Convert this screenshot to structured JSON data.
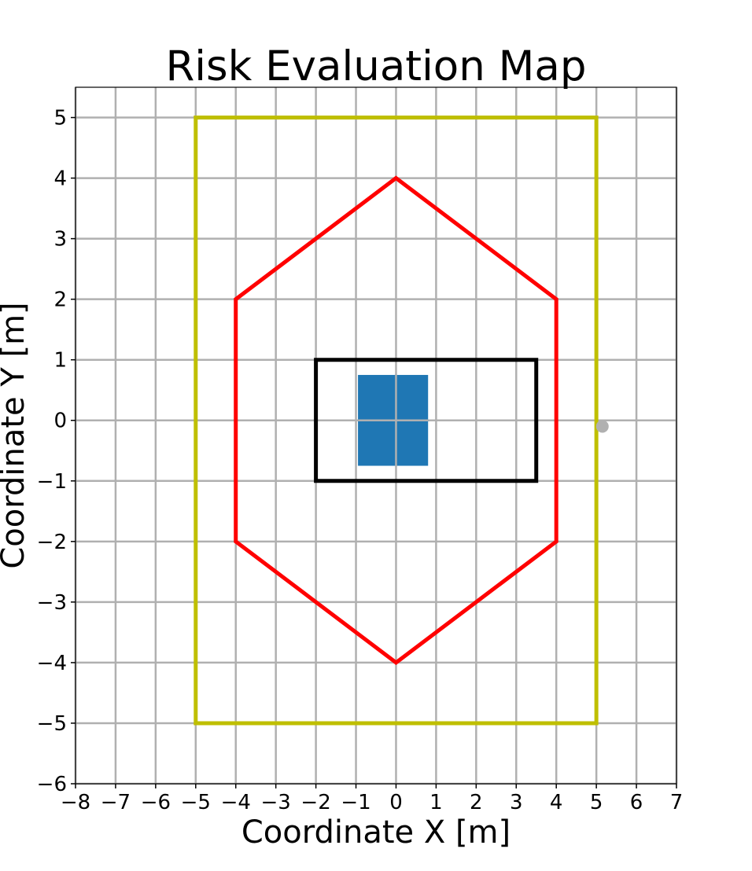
{
  "chart_data": {
    "type": "scatter",
    "title": "Risk Evaluation Map",
    "xlabel": "Coordinate X [m]",
    "ylabel": "Coordinate Y [m]",
    "xlim": [
      -8,
      7
    ],
    "ylim": [
      -6,
      5.5
    ],
    "xticks": [
      -8,
      -7,
      -6,
      -5,
      -4,
      -3,
      -2,
      -1,
      0,
      1,
      2,
      3,
      4,
      5,
      6,
      7
    ],
    "yticks": [
      -6,
      -5,
      -4,
      -3,
      -2,
      -1,
      0,
      1,
      2,
      3,
      4,
      5
    ],
    "grid": true,
    "shapes": [
      {
        "id": "outer-boundary-rectangle",
        "kind": "polygon",
        "color": "#bfbf00",
        "points": [
          [
            -5,
            -5
          ],
          [
            5,
            -5
          ],
          [
            5,
            5
          ],
          [
            -5,
            5
          ]
        ]
      },
      {
        "id": "hexagon-zone",
        "kind": "polygon",
        "color": "#ff0000",
        "points": [
          [
            0,
            4
          ],
          [
            4,
            2
          ],
          [
            4,
            -2
          ],
          [
            0,
            -4
          ],
          [
            -4,
            -2
          ],
          [
            -4,
            2
          ]
        ]
      },
      {
        "id": "inner-rectangle",
        "kind": "polygon",
        "color": "#000000",
        "points": [
          [
            -2,
            -1
          ],
          [
            3.5,
            -1
          ],
          [
            3.5,
            1
          ],
          [
            -2,
            1
          ]
        ]
      },
      {
        "id": "blue-filled-block",
        "kind": "filled-rect",
        "color": "#1f77b4",
        "x_range": [
          -0.95,
          0.8
        ],
        "y_range": [
          -0.75,
          0.75
        ]
      }
    ],
    "points": [
      {
        "id": "gray-point",
        "x": 5.15,
        "y": -0.1,
        "color": "#b0b0b0"
      }
    ]
  }
}
